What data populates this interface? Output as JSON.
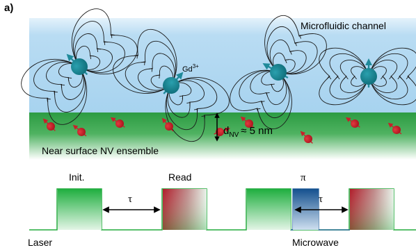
{
  "panel_label": "a)",
  "channel_label": "Microfluidic channel",
  "ion_label": "Gd",
  "ion_charge": "3+",
  "depth_label": "d",
  "depth_subscript": "NV",
  "depth_value": "≈ 5  nm",
  "nv_label": "Near surface NV ensemble",
  "pulses": {
    "init_label": "Init.",
    "read_label": "Read",
    "pi_label": "π",
    "tau_label": "τ",
    "laser_label": "Laser",
    "microwave_label": "Microwave"
  },
  "colors": {
    "channel": "#b8dcf2",
    "surface": "#2e9e44",
    "ion": "#17808e",
    "nv_spin": "#c8202a",
    "laser_green": "#2fb84a",
    "microwave_blue": "#1a5a9a"
  }
}
